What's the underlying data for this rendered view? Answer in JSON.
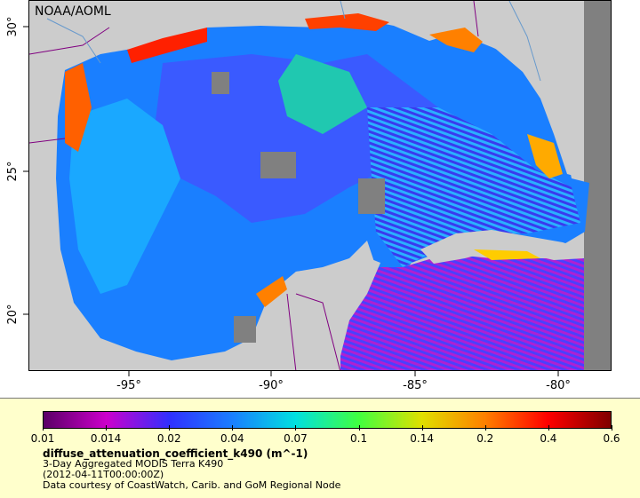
{
  "map": {
    "credit": "NOAA/AOML",
    "lon_ticks": [
      "-95°",
      "-90°",
      "-85°",
      "-80°"
    ],
    "lat_ticks": [
      "30°",
      "25°",
      "20°"
    ],
    "colors": {
      "land": "#cccccc",
      "no_data": "#808080",
      "border": "#800080",
      "rivers": "#6699cc"
    }
  },
  "legend": {
    "ticks": [
      "0.01",
      "0.014",
      "0.02",
      "0.04",
      "0.07",
      "0.1",
      "0.14",
      "0.2",
      "0.4",
      "0.6"
    ],
    "variable": "diffuse_attenuation_coefficient_k490 (m^-1)",
    "lines": [
      "3-Day Aggregated MODIS Terra K490",
      "(2012-04-11T00:00:00Z)",
      "Data courtesy of CoastWatch, Carib. and GoM Regional Node"
    ],
    "colormap": [
      "#5a0066",
      "#cc00cc",
      "#3030ff",
      "#1a7fff",
      "#00e0e0",
      "#40ff40",
      "#e0e000",
      "#ff8000",
      "#ff0000",
      "#800000"
    ]
  }
}
